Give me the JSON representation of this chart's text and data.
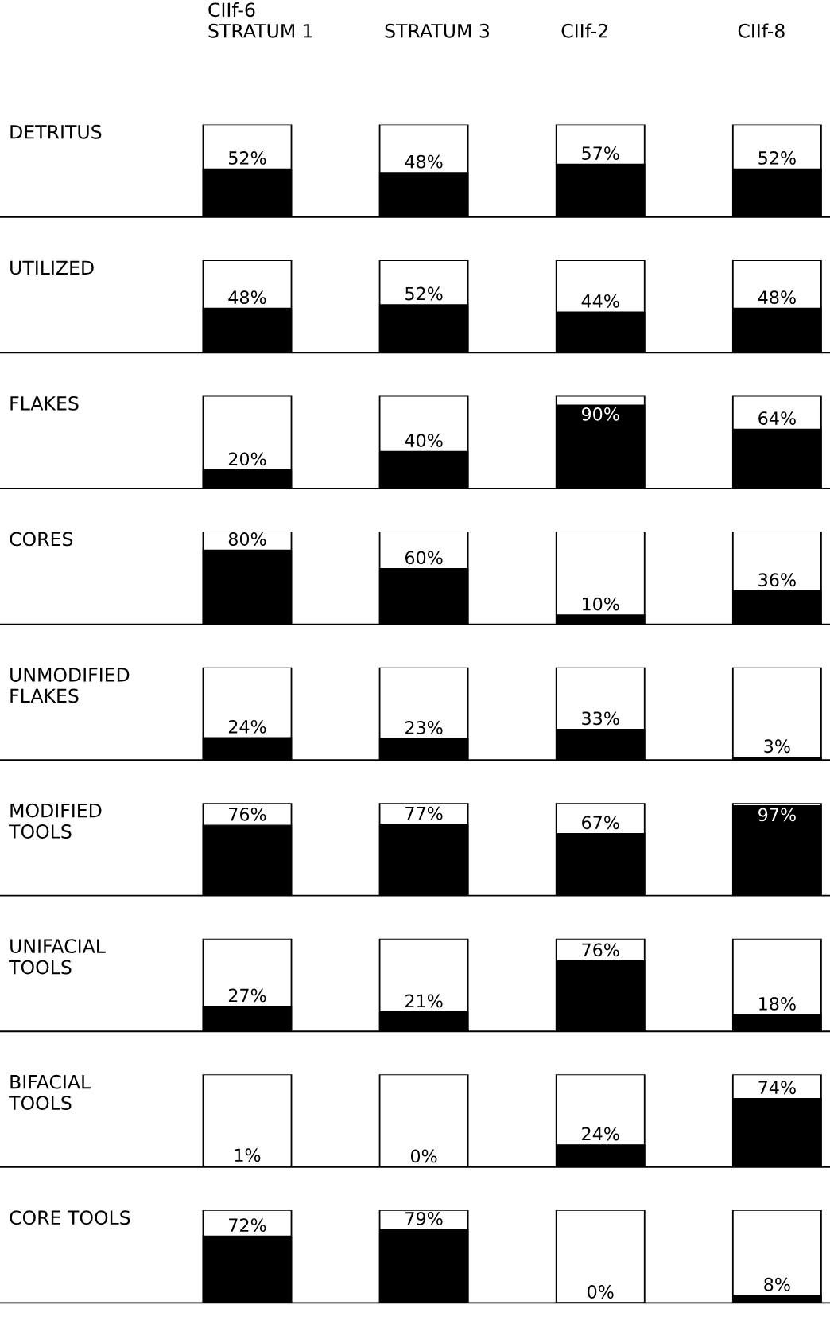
{
  "chart_data": [
    {
      "type": "bar",
      "title": "DETRITUS",
      "categories": [
        "CIIf-6\nSTRATUM 1",
        "STRATUM 3",
        "CIIf-2",
        "CIIf-8"
      ],
      "values": [
        52,
        48,
        57,
        52
      ],
      "value_labels": [
        "52%",
        "48%",
        "57%",
        "52%"
      ],
      "color": "#000000",
      "ylim": [
        0,
        100
      ],
      "tick_labels": "x"
    },
    {
      "type": "bar",
      "title": "UTILIZED",
      "categories": [
        null,
        null,
        null,
        null
      ],
      "values": [
        48,
        52,
        44,
        48
      ],
      "value_labels": [
        "48%",
        "52%",
        "44%",
        "48%"
      ],
      "color": "#000000",
      "ylim": [
        0,
        100
      ],
      "tick_labels": false
    },
    {
      "type": "bar",
      "title": "FLAKES",
      "categories": [
        null,
        null,
        null,
        null
      ],
      "values": [
        20,
        40,
        90,
        64
      ],
      "value_labels": [
        "20%",
        "40%",
        "90%",
        "64%"
      ],
      "color": "#000000",
      "ylim": [
        0,
        100
      ],
      "tick_labels": false
    },
    {
      "type": "bar",
      "title": "CORES",
      "categories": [
        null,
        null,
        null,
        null
      ],
      "values": [
        80,
        60,
        10,
        36
      ],
      "value_labels": [
        "80%",
        "60%",
        "10%",
        "36%"
      ],
      "color": "#000000",
      "ylim": [
        0,
        100
      ],
      "tick_labels": false
    },
    {
      "type": "bar",
      "title": "UNMODIFIED\nFLAKES",
      "categories": [
        null,
        null,
        null,
        null
      ],
      "values": [
        24,
        23,
        33,
        3
      ],
      "value_labels": [
        "24%",
        "23%",
        "33%",
        "3%"
      ],
      "color": "#000000",
      "ylim": [
        0,
        100
      ],
      "tick_labels": false
    },
    {
      "type": "bar",
      "title": "MODIFIED\nTOOLS",
      "categories": [
        null,
        null,
        null,
        null
      ],
      "values": [
        76,
        77,
        67,
        97
      ],
      "value_labels": [
        "76%",
        "77%",
        "67%",
        "97%"
      ],
      "color": "#000000",
      "ylim": [
        0,
        100
      ],
      "tick_labels": false
    },
    {
      "type": "bar",
      "title": "UNIFACIAL\nTOOLS",
      "categories": [
        null,
        null,
        null,
        null
      ],
      "values": [
        27,
        21,
        76,
        18
      ],
      "value_labels": [
        "27%",
        "21%",
        "76%",
        "18%"
      ],
      "color": "#000000",
      "ylim": [
        0,
        100
      ],
      "tick_labels": false
    },
    {
      "type": "bar",
      "title": "BIFACIAL\nTOOLS",
      "categories": [
        null,
        null,
        null,
        null
      ],
      "values": [
        1,
        0,
        24,
        74
      ],
      "value_labels": [
        "1%",
        "0%",
        "24%",
        "74%"
      ],
      "color": "#000000",
      "ylim": [
        0,
        100
      ],
      "tick_labels": false
    },
    {
      "type": "bar",
      "title": "CORE TOOLS",
      "categories": [
        null,
        null,
        null,
        null
      ],
      "values": [
        72,
        79,
        0,
        8
      ],
      "value_labels": [
        "72%",
        "79%",
        "0%",
        "8%"
      ],
      "color": "#000000",
      "ylim": [
        0,
        100
      ],
      "tick_labels": false
    }
  ]
}
